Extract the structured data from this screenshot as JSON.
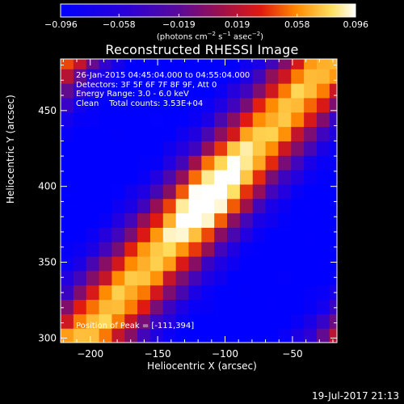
{
  "colorbar": {
    "tick_labels": [
      "−0.096",
      "−0.058",
      "−0.019",
      "0.019",
      "0.058",
      "0.096"
    ],
    "tick_values": [
      -0.096,
      -0.058,
      -0.019,
      0.019,
      0.058,
      0.096
    ],
    "units_text": "(photons cm",
    "units_exp1": "−2",
    "units_mid": " s",
    "units_exp2": "−1",
    "units_end": " asec",
    "units_exp3": "−2",
    "units_close": ")"
  },
  "info": {
    "time_range": "26-Jan-2015 04:45:04.000 to 04:55:04.000",
    "detectors": "Detectors: 3F 5F 6F 7F 8F 9F, Att 0",
    "energy": "Energy Range: 3.0 - 6.0 keV",
    "clean": "Clean    Total counts: 3.53E+04"
  },
  "peak_label": "Position of Peak = [-111,394]",
  "footer_timestamp": "19-Jul-2017 21:13",
  "colors": {
    "background": "#000000",
    "axis": "#ffffff"
  },
  "chart_data": {
    "type": "heatmap",
    "title": "Reconstructed RHESSI Image",
    "xlabel": "Heliocentric X (arcsec)",
    "ylabel": "Heliocentric Y (arcsec)",
    "xlim": [
      -222,
      -17
    ],
    "ylim": [
      297,
      484
    ],
    "x_ticks": [
      -200,
      -150,
      -100,
      -50
    ],
    "y_ticks": [
      300,
      350,
      400,
      450
    ],
    "x_tick_labels": [
      "−200",
      "−150",
      "−100",
      "−50"
    ],
    "y_tick_labels": [
      "300",
      "350",
      "400",
      "450"
    ],
    "colorbar_range": [
      -0.096,
      0.096
    ],
    "colormap": "blue-purple-red-yellow-white",
    "peak": [
      -111,
      394
    ]
  }
}
